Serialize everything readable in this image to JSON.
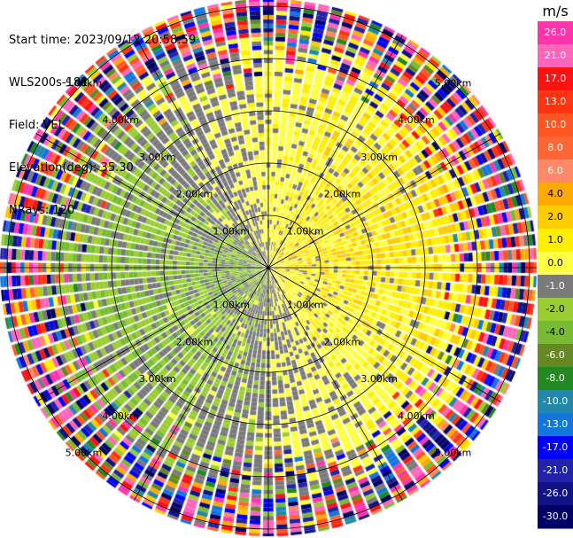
{
  "header": {
    "start_time": "Start time: 2023/09/12 20:58:59",
    "instrument": "WLS200s-181",
    "field": "Field: VEL",
    "elevation": "Elevation(deg): 35.30",
    "nrays": "NRays: 120"
  },
  "chart_data": {
    "type": "heatmap",
    "projection": "polar-ppi",
    "field": "VEL",
    "units": "m/s",
    "n_rays": 120,
    "max_range_km": 6.5,
    "range_ring_labels": [
      "1.00km",
      "2.00km",
      "3.00km",
      "4.00km",
      "5.00km"
    ],
    "range_rings_km": [
      1,
      2,
      3,
      4,
      5
    ],
    "azimuth_spokes_deg": [
      0,
      30,
      60,
      90,
      120,
      150,
      180,
      210,
      240,
      270,
      300,
      330
    ],
    "colorbar": {
      "label": "m/s",
      "tick_labels": [
        "26.0",
        "21.0",
        "17.0",
        "13.0",
        "10.0",
        "8.0",
        "6.0",
        "4.0",
        "2.0",
        "1.0",
        "0.0",
        "-1.0",
        "-2.0",
        "-4.0",
        "-6.0",
        "-8.0",
        "-10.0",
        "-13.0",
        "-17.0",
        "-21.0",
        "-26.0",
        "-30.0"
      ],
      "bins": [
        {
          "min": 26,
          "max": 30,
          "color": "#ff33aa"
        },
        {
          "min": 21,
          "max": 26,
          "color": "#ff66bb"
        },
        {
          "min": 17,
          "max": 21,
          "color": "#ff1111"
        },
        {
          "min": 13,
          "max": 17,
          "color": "#ff3311"
        },
        {
          "min": 10,
          "max": 13,
          "color": "#ff5522"
        },
        {
          "min": 8,
          "max": 10,
          "color": "#ff6633"
        },
        {
          "min": 6,
          "max": 8,
          "color": "#ff8866"
        },
        {
          "min": 4,
          "max": 6,
          "color": "#ffaa00"
        },
        {
          "min": 2,
          "max": 4,
          "color": "#ffcc00"
        },
        {
          "min": 1,
          "max": 2,
          "color": "#ffee00"
        },
        {
          "min": 0,
          "max": 1,
          "color": "#ffff44"
        },
        {
          "min": -1,
          "max": 0,
          "color": "#7a7a7a"
        },
        {
          "min": -2,
          "max": -1,
          "color": "#9acd32"
        },
        {
          "min": -4,
          "max": -2,
          "color": "#77bb33"
        },
        {
          "min": -6,
          "max": -4,
          "color": "#668822"
        },
        {
          "min": -8,
          "max": -6,
          "color": "#228822"
        },
        {
          "min": -10,
          "max": -8,
          "color": "#2288aa"
        },
        {
          "min": -13,
          "max": -10,
          "color": "#1177dd"
        },
        {
          "min": -17,
          "max": -13,
          "color": "#0000ff"
        },
        {
          "min": -21,
          "max": -17,
          "color": "#2222aa"
        },
        {
          "min": -26,
          "max": -21,
          "color": "#111188"
        },
        {
          "min": -30,
          "max": -26,
          "color": "#000066"
        }
      ]
    }
  }
}
